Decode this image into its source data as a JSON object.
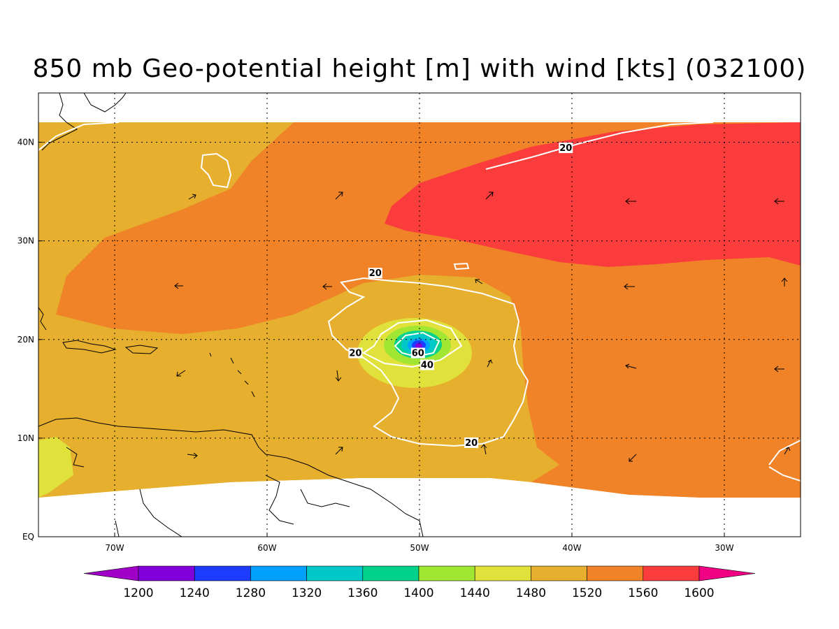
{
  "title": "850 mb Geo-potential height [m] with wind [kts] (032100)",
  "map": {
    "lon_range": [
      -75,
      -25
    ],
    "lat_range": [
      0,
      45
    ],
    "lon_ticks": [
      {
        "value": -70,
        "label": "70W"
      },
      {
        "value": -60,
        "label": "60W"
      },
      {
        "value": -50,
        "label": "50W"
      },
      {
        "value": -40,
        "label": "40W"
      },
      {
        "value": -30,
        "label": "30W"
      }
    ],
    "lat_ticks": [
      {
        "value": 0,
        "label": "EQ"
      },
      {
        "value": 10,
        "label": "10N"
      },
      {
        "value": 20,
        "label": "20N"
      },
      {
        "value": 30,
        "label": "30N"
      },
      {
        "value": 40,
        "label": "40N"
      }
    ],
    "contour_labels": [
      {
        "text": "20",
        "lon": -40.4,
        "lat": 39.4
      },
      {
        "text": "20",
        "lon": -52.9,
        "lat": 26.7
      },
      {
        "text": "20",
        "lon": -54.2,
        "lat": 18.6
      },
      {
        "text": "60",
        "lon": -50.1,
        "lat": 18.6
      },
      {
        "text": "40",
        "lon": -49.5,
        "lat": 17.4
      },
      {
        "text": "20",
        "lon": -46.6,
        "lat": 9.5
      }
    ],
    "colors": {
      "1480": "#e1e13c",
      "1520": "#e6af2d",
      "1560": "#f08228",
      "1600": "#fa3c3c",
      "1440": "#a0e632",
      "1400": "#00d28c",
      "1360": "#00c8c8",
      "1320": "#00a0ff",
      "1280": "#1e3cff",
      "1240": "#8200dc",
      "1200": "#a000c8"
    }
  },
  "colorbar": {
    "levels": [
      "1200",
      "1240",
      "1280",
      "1320",
      "1360",
      "1400",
      "1440",
      "1480",
      "1520",
      "1560",
      "1600"
    ],
    "colors": [
      "#a000c8",
      "#8200dc",
      "#1e3cff",
      "#00a0ff",
      "#00c8c8",
      "#00d28c",
      "#a0e632",
      "#e1e13c",
      "#e6af2d",
      "#f08228",
      "#fa3c3c",
      "#f00082"
    ]
  }
}
